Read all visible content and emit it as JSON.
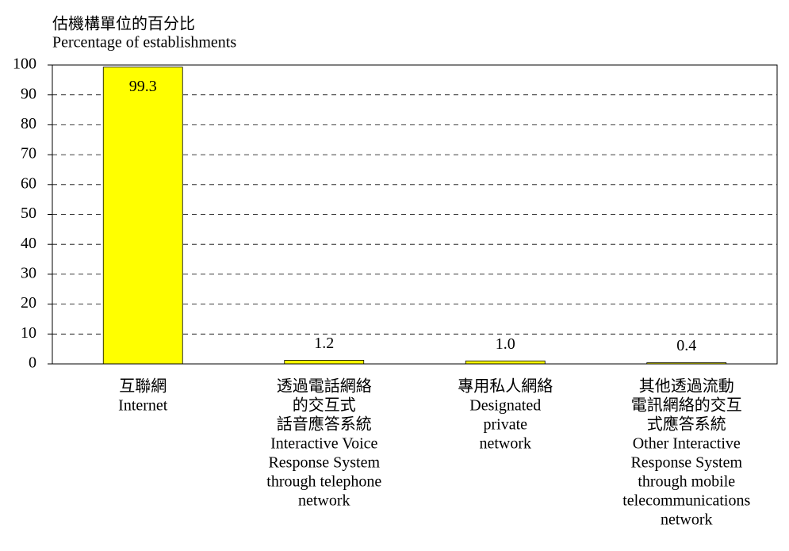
{
  "chart_data": {
    "type": "bar",
    "y_axis_label": [
      "估機構單位的百分比",
      "Percentage of establishments"
    ],
    "categories": [
      [
        "互聯網",
        "Internet"
      ],
      [
        "透過電話網絡",
        "的交互式",
        "話音應答系統",
        "Interactive Voice",
        "Response System",
        "through telephone",
        "network"
      ],
      [
        "專用私人網絡",
        "Designated",
        "private",
        "network"
      ],
      [
        "其他透過流動",
        "電訊網絡的交互",
        "式應答系統",
        "Other Interactive",
        "Response System",
        "through mobile",
        "telecommunications",
        "network"
      ]
    ],
    "values": [
      99.3,
      1.2,
      1.0,
      0.4
    ],
    "value_labels": [
      "99.3",
      "1.2",
      "1.0",
      "0.4"
    ],
    "color": "#ffff00",
    "ylim": [
      0,
      100
    ],
    "yticks": [
      0,
      10,
      20,
      30,
      40,
      50,
      60,
      70,
      80,
      90,
      100
    ],
    "grid": true
  }
}
